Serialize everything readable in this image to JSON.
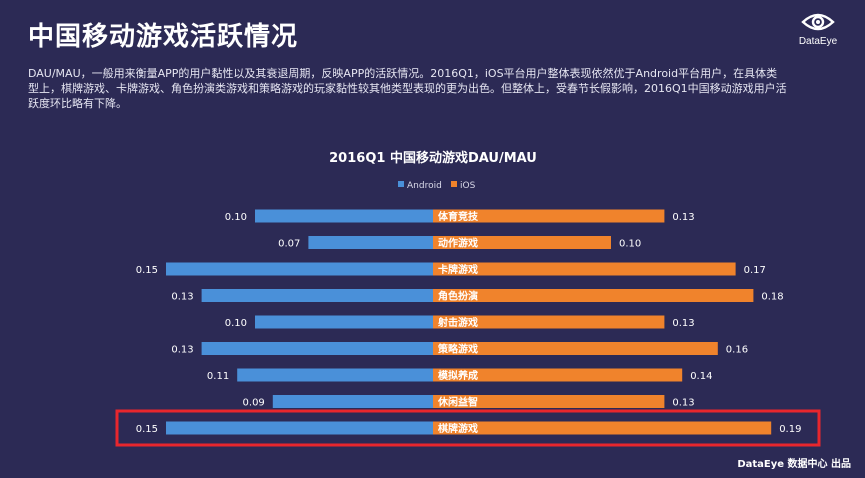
{
  "header": {
    "title": "中国移动游戏活跃情况",
    "description": "DAU/MAU，一般用来衡量APP的用户黏性以及其衰退周期，反映APP的活跃情况。2016Q1，iOS平台用户整体表现依然优于Android平台用户，在具体类型上，棋牌游戏、卡牌游戏、角色扮演类游戏和策略游戏的玩家黏性较其他类型表现的更为出色。但整体上，受春节长假影响，2016Q1中国移动游戏用户活跃度环比略有下降。"
  },
  "logo": {
    "icon": "eye-icon",
    "text": "DataEye"
  },
  "footer": {
    "text": "DataEye 数据中心 出品"
  },
  "chart_data": {
    "type": "bar",
    "orientation": "diverging-horizontal",
    "title": "2016Q1 中国移动游戏DAU/MAU",
    "categories": [
      "体育竞技",
      "动作游戏",
      "卡牌游戏",
      "角色扮演",
      "射击游戏",
      "策略游戏",
      "模拟养成",
      "休闲益智",
      "棋牌游戏"
    ],
    "series": [
      {
        "name": "Android",
        "color": "#4a90d9",
        "values": [
          0.1,
          0.07,
          0.15,
          0.13,
          0.1,
          0.13,
          0.11,
          0.09,
          0.15
        ]
      },
      {
        "name": "iOS",
        "color": "#f0832c",
        "values": [
          0.13,
          0.1,
          0.17,
          0.18,
          0.13,
          0.16,
          0.14,
          0.13,
          0.19
        ]
      }
    ],
    "legend_position": "top-center",
    "highlight_category": "棋牌游戏",
    "highlight_color": "#e8262d"
  }
}
